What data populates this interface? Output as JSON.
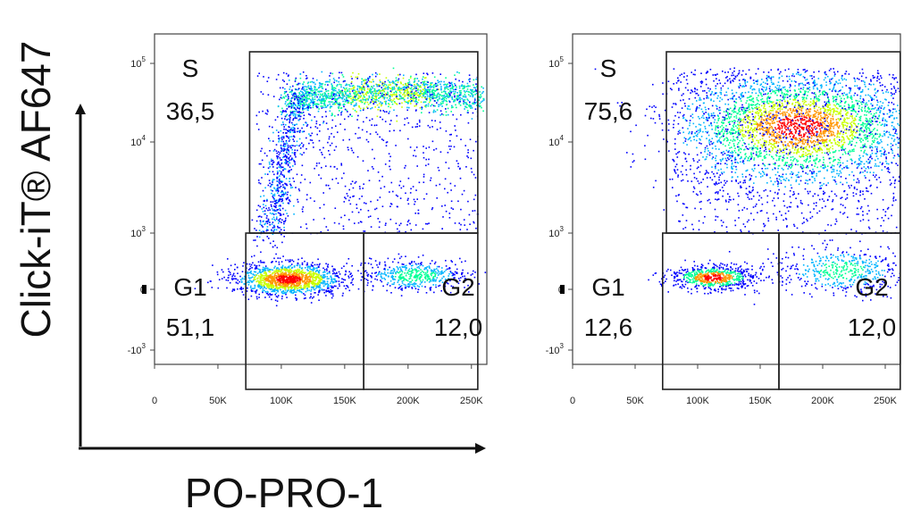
{
  "chart_data": {
    "type": "scatter",
    "xlabel": "PO-PRO-1",
    "ylabel": "Click-iT® AF647",
    "x_ticks": [
      "0",
      "50K",
      "100K",
      "150K",
      "200K",
      "250K"
    ],
    "x_tick_values": [
      0,
      50000,
      100000,
      150000,
      200000,
      250000
    ],
    "y_ticks": [
      {
        "base": "10",
        "exp": "5",
        "value": 100000
      },
      {
        "base": "10",
        "exp": "4",
        "value": 10000
      },
      {
        "base": "10",
        "exp": "3",
        "value": 1000
      },
      {
        "base": "0",
        "exp": "",
        "value": 0
      },
      {
        "base": "-10",
        "exp": "3",
        "value": -1000
      }
    ],
    "xlim": [
      0,
      262144
    ],
    "y_scale": "biexponential",
    "density_colors": [
      "#0000ff",
      "#00b4ff",
      "#00ff96",
      "#c8ff00",
      "#ff9600",
      "#ff0000"
    ],
    "panels": [
      {
        "gates": [
          {
            "name": "S",
            "value": "36,5",
            "x_range": [
              75000,
              255000
            ],
            "y_range": [
              1000,
              100000
            ]
          },
          {
            "name": "G1",
            "value": "51,1",
            "x_range": [
              72000,
              165000
            ],
            "y_range": [
              -1000,
              1000
            ]
          },
          {
            "name": "G2",
            "value": "12,0",
            "x_range": [
              165000,
              255000
            ],
            "y_range": [
              -1000,
              1000
            ]
          }
        ]
      },
      {
        "gates": [
          {
            "name": "S",
            "value": "75,6",
            "x_range": [
              75000,
              262000
            ],
            "y_range": [
              1000,
              100000
            ]
          },
          {
            "name": "G1",
            "value": "12,6",
            "x_range": [
              72000,
              165000
            ],
            "y_range": [
              -1000,
              1000
            ]
          },
          {
            "name": "G2",
            "value": "12,0",
            "x_range": [
              165000,
              262000
            ],
            "y_range": [
              -1000,
              1000
            ]
          }
        ]
      }
    ]
  }
}
